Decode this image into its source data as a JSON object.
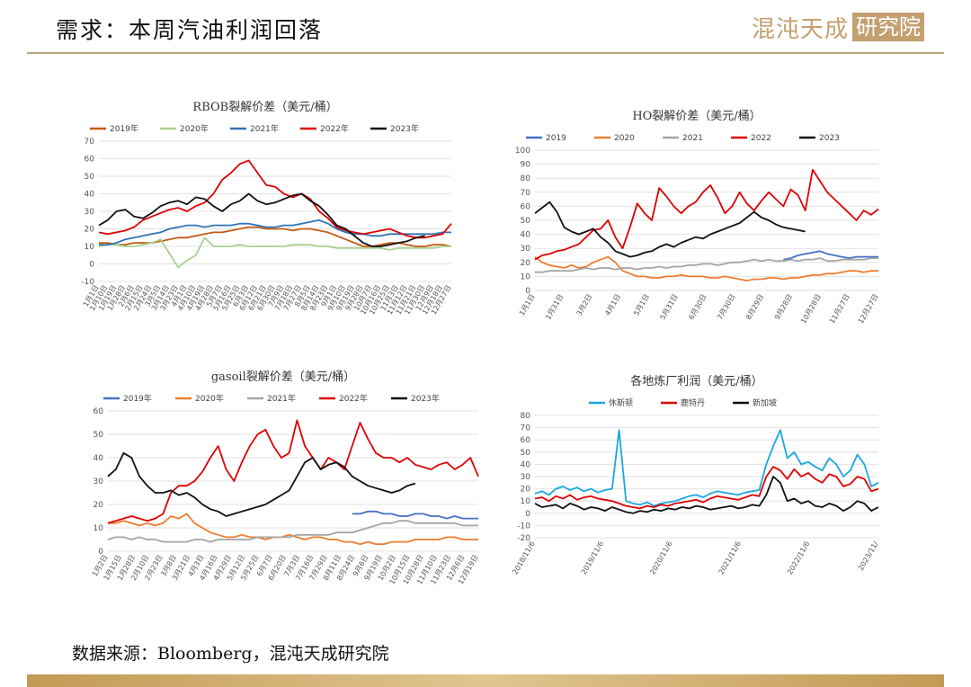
{
  "header": {
    "title": "需求：本周汽油利润回落",
    "logo_text": "混沌天成",
    "logo_box": "研究院"
  },
  "footer": {
    "source": "数据来源：Bloomberg，混沌天成研究院"
  },
  "chart_data": [
    {
      "type": "line",
      "title": "RBOB裂解价差（美元/桶）",
      "ylim": [
        -10,
        70
      ],
      "yticks": [
        -10,
        0,
        10,
        20,
        30,
        40,
        50,
        60,
        70
      ],
      "xticks": [
        "1月1日",
        "1月10日",
        "1月19日",
        "1月28日",
        "2月6日",
        "2月15日",
        "2月24日",
        "3月5日",
        "3月14日",
        "3月23日",
        "4月1日",
        "4月10日",
        "4月19日",
        "4月28日",
        "5月7日",
        "5月16日",
        "5月25日",
        "6月3日",
        "6月12日",
        "6月21日",
        "6月30日",
        "7月9日",
        "7月18日",
        "7月27日",
        "8月5日",
        "8月14日",
        "8月23日",
        "9月1日",
        "9月10日",
        "9月19日",
        "9月28日",
        "10月7日",
        "10月16日",
        "10月25日",
        "11月3日",
        "11月12日",
        "11月21日",
        "11月30日",
        "12月9日",
        "12月18日",
        "12月27日"
      ],
      "legend_position": "top",
      "series": [
        {
          "name": "2019年",
          "color": "#c55a11",
          "values": [
            12,
            12,
            11,
            11,
            12,
            12,
            12,
            13,
            14,
            15,
            15,
            16,
            17,
            18,
            18,
            19,
            20,
            21,
            21,
            20,
            20,
            20,
            19,
            20,
            20,
            19,
            18,
            16,
            14,
            12,
            10,
            10,
            11,
            12,
            12,
            11,
            10,
            10,
            11,
            11,
            10
          ]
        },
        {
          "name": "2020年",
          "color": "#a9d18e",
          "values": [
            10,
            11,
            11,
            10,
            10,
            11,
            12,
            14,
            6,
            -2,
            2,
            5,
            15,
            10,
            10,
            10,
            11,
            10,
            10,
            10,
            10,
            10,
            11,
            11,
            11,
            10,
            10,
            9,
            9,
            9,
            9,
            9,
            9,
            8,
            9,
            9,
            9,
            9,
            9,
            10,
            10
          ]
        },
        {
          "name": "2021年",
          "color": "#2e75b6",
          "values": [
            11,
            11,
            12,
            14,
            15,
            16,
            17,
            18,
            20,
            21,
            22,
            22,
            21,
            22,
            22,
            22,
            23,
            23,
            22,
            21,
            21,
            22,
            22,
            23,
            24,
            25,
            23,
            20,
            18,
            17,
            17,
            16,
            16,
            17,
            17,
            17,
            17,
            17,
            17,
            18,
            18
          ]
        },
        {
          "name": "2022年",
          "color": "#e00000",
          "values": [
            18,
            17,
            18,
            19,
            21,
            25,
            27,
            29,
            31,
            32,
            30,
            33,
            35,
            40,
            48,
            52,
            57,
            59,
            52,
            45,
            44,
            40,
            38,
            40,
            37,
            30,
            26,
            21,
            19,
            18,
            17,
            18,
            19,
            20,
            18,
            16,
            15,
            15,
            16,
            17,
            23
          ]
        },
        {
          "name": "2023年",
          "color": "#111111",
          "values": [
            22,
            25,
            30,
            31,
            27,
            26,
            29,
            33,
            35,
            36,
            34,
            38,
            37,
            33,
            30,
            34,
            36,
            40,
            36,
            34,
            35,
            37,
            39,
            40,
            36,
            33,
            28,
            22,
            20,
            16,
            12,
            10,
            10,
            11,
            12,
            13,
            15,
            16,
            null,
            null,
            null
          ]
        }
      ]
    },
    {
      "type": "line",
      "title": "HO裂解价差（美元/桶）",
      "ylim": [
        0,
        100
      ],
      "yticks": [
        0,
        10,
        20,
        30,
        40,
        50,
        60,
        70,
        80,
        90,
        100
      ],
      "xticks": [
        "1月1日",
        "1月31日",
        "3月2日",
        "4月1日",
        "5月1日",
        "5月31日",
        "6月30日",
        "7月30日",
        "8月29日",
        "9月28日",
        "10月28日",
        "11月27日",
        "12月27日"
      ],
      "legend_position": "top",
      "series": [
        {
          "name": "2019",
          "color": "#4472c4",
          "values": [
            null,
            null,
            null,
            null,
            null,
            null,
            null,
            null,
            null,
            null,
            null,
            null,
            null,
            null,
            null,
            null,
            null,
            null,
            null,
            null,
            null,
            null,
            null,
            null,
            null,
            null,
            null,
            null,
            null,
            null,
            null,
            null,
            null,
            null,
            22,
            23,
            25,
            26,
            27,
            28,
            26,
            25,
            24,
            23,
            24,
            24,
            24,
            24
          ]
        },
        {
          "name": "2020",
          "color": "#ed7d31",
          "values": [
            24,
            20,
            18,
            17,
            16,
            18,
            16,
            17,
            20,
            22,
            24,
            20,
            14,
            12,
            10,
            10,
            9,
            9,
            10,
            10,
            11,
            10,
            10,
            10,
            9,
            9,
            10,
            9,
            8,
            7,
            8,
            8,
            9,
            9,
            8,
            9,
            9,
            10,
            11,
            11,
            12,
            12,
            13,
            14,
            14,
            13,
            14,
            14
          ]
        },
        {
          "name": "2021",
          "color": "#a5a5a5",
          "values": [
            13,
            13,
            14,
            14,
            14,
            14,
            15,
            16,
            15,
            16,
            16,
            15,
            16,
            16,
            15,
            16,
            16,
            17,
            16,
            17,
            17,
            18,
            18,
            19,
            19,
            18,
            19,
            20,
            20,
            21,
            22,
            21,
            22,
            21,
            21,
            22,
            21,
            22,
            22,
            23,
            21,
            21,
            22,
            22,
            22,
            22,
            23,
            23
          ]
        },
        {
          "name": "2022",
          "color": "#e00000",
          "values": [
            22,
            25,
            26,
            28,
            29,
            31,
            33,
            38,
            43,
            44,
            50,
            38,
            30,
            45,
            62,
            55,
            50,
            73,
            67,
            60,
            55,
            60,
            63,
            70,
            75,
            66,
            55,
            60,
            70,
            62,
            57,
            64,
            70,
            65,
            60,
            72,
            68,
            57,
            86,
            78,
            70,
            65,
            60,
            55,
            50,
            57,
            54,
            58
          ]
        },
        {
          "name": "2023",
          "color": "#111111",
          "values": [
            55,
            59,
            63,
            56,
            45,
            42,
            40,
            42,
            44,
            38,
            34,
            28,
            26,
            24,
            25,
            27,
            28,
            31,
            33,
            31,
            34,
            36,
            38,
            37,
            40,
            42,
            44,
            46,
            48,
            52,
            56,
            52,
            50,
            47,
            45,
            44,
            43,
            42,
            null,
            null,
            null,
            null,
            null,
            null,
            null,
            null,
            null,
            null
          ]
        }
      ]
    },
    {
      "type": "line",
      "title": "gasoil裂解价差（美元/桶）",
      "ylim": [
        0,
        60
      ],
      "yticks": [
        0,
        10,
        20,
        30,
        40,
        50,
        60
      ],
      "xticks": [
        "1月2日",
        "1月15日",
        "1月28日",
        "2月10日",
        "2月23日",
        "3月8日",
        "3月21日",
        "4月3日",
        "4月16日",
        "4月29日",
        "5月12日",
        "5月25日",
        "6月7日",
        "6月20日",
        "7月3日",
        "7月16日",
        "7月29日",
        "8月11日",
        "8月24日",
        "9月6日",
        "9月19日",
        "10月2日",
        "10月15日",
        "10月28日",
        "11月10日",
        "11月23日",
        "12月6日",
        "12月19日"
      ],
      "legend_position": "top",
      "series": [
        {
          "name": "2019年",
          "color": "#4472c4",
          "values": [
            null,
            null,
            null,
            null,
            null,
            null,
            null,
            null,
            null,
            null,
            null,
            null,
            null,
            null,
            null,
            null,
            null,
            null,
            null,
            null,
            null,
            null,
            null,
            null,
            null,
            null,
            null,
            null,
            null,
            null,
            null,
            16,
            16,
            17,
            17,
            16,
            16,
            15,
            15,
            16,
            16,
            15,
            15,
            14,
            15,
            14,
            14,
            14
          ]
        },
        {
          "name": "2020年",
          "color": "#ed7d31",
          "values": [
            12,
            12,
            13,
            12,
            11,
            12,
            11,
            12,
            15,
            14,
            16,
            12,
            10,
            8,
            7,
            6,
            6,
            7,
            6,
            6,
            5,
            6,
            6,
            7,
            6,
            5,
            6,
            6,
            5,
            5,
            4,
            4,
            3,
            4,
            3,
            3,
            4,
            4,
            4,
            5,
            5,
            5,
            5,
            6,
            6,
            5,
            5,
            5
          ]
        },
        {
          "name": "2021年",
          "color": "#a5a5a5",
          "values": [
            5,
            6,
            6,
            5,
            6,
            5,
            5,
            4,
            4,
            4,
            4,
            5,
            5,
            4,
            5,
            5,
            5,
            5,
            5,
            6,
            6,
            6,
            6,
            6,
            7,
            7,
            7,
            7,
            7,
            8,
            8,
            8,
            9,
            10,
            11,
            12,
            12,
            13,
            13,
            12,
            12,
            12,
            12,
            12,
            12,
            11,
            11,
            11
          ]
        },
        {
          "name": "2022年",
          "color": "#e00000",
          "values": [
            12,
            13,
            14,
            15,
            14,
            13,
            14,
            16,
            25,
            28,
            28,
            30,
            34,
            40,
            45,
            35,
            30,
            38,
            45,
            50,
            52,
            45,
            40,
            42,
            56,
            45,
            40,
            35,
            40,
            38,
            35,
            45,
            55,
            48,
            42,
            40,
            40,
            38,
            40,
            37,
            36,
            35,
            37,
            38,
            35,
            37,
            40,
            32
          ]
        },
        {
          "name": "2023年",
          "color": "#111111",
          "values": [
            32,
            35,
            42,
            40,
            32,
            28,
            25,
            25,
            26,
            24,
            25,
            23,
            20,
            18,
            17,
            15,
            16,
            17,
            18,
            19,
            20,
            22,
            24,
            26,
            32,
            38,
            40,
            35,
            37,
            38,
            36,
            32,
            30,
            28,
            27,
            26,
            25,
            26,
            28,
            29,
            null,
            null,
            null,
            null,
            null,
            null,
            null,
            null
          ]
        }
      ]
    },
    {
      "type": "line",
      "title": "各地炼厂利润（美元/桶）",
      "ylim": [
        -20,
        80
      ],
      "yticks": [
        -20,
        -10,
        0,
        10,
        20,
        30,
        40,
        50,
        60,
        70,
        80
      ],
      "xticks": [
        "2018/11/6",
        "2019/11/6",
        "2020/11/6",
        "2021/11/6",
        "2022/11/6",
        "2023/11/"
      ],
      "legend_position": "top",
      "series": [
        {
          "name": "休斯顿",
          "color": "#1aa7e0",
          "values": [
            16,
            18,
            15,
            20,
            22,
            19,
            21,
            18,
            20,
            17,
            19,
            20,
            68,
            10,
            8,
            7,
            9,
            6,
            8,
            9,
            10,
            12,
            14,
            15,
            13,
            16,
            18,
            17,
            16,
            15,
            17,
            18,
            19,
            40,
            55,
            68,
            45,
            50,
            40,
            42,
            38,
            35,
            45,
            40,
            30,
            35,
            48,
            40,
            22,
            25
          ]
        },
        {
          "name": "鹿特丹",
          "color": "#e00000",
          "values": [
            12,
            13,
            10,
            14,
            12,
            15,
            11,
            13,
            14,
            12,
            11,
            10,
            8,
            6,
            5,
            4,
            6,
            5,
            7,
            6,
            8,
            9,
            10,
            11,
            9,
            12,
            14,
            13,
            12,
            11,
            13,
            15,
            14,
            30,
            38,
            35,
            28,
            36,
            30,
            33,
            28,
            25,
            32,
            30,
            22,
            24,
            30,
            28,
            18,
            20
          ]
        },
        {
          "name": "新加坡",
          "color": "#111111",
          "values": [
            8,
            5,
            6,
            7,
            4,
            8,
            6,
            3,
            5,
            4,
            2,
            5,
            3,
            1,
            0,
            2,
            1,
            3,
            2,
            4,
            3,
            5,
            4,
            6,
            5,
            3,
            4,
            5,
            6,
            4,
            5,
            7,
            6,
            15,
            30,
            25,
            10,
            12,
            8,
            10,
            6,
            5,
            8,
            6,
            2,
            5,
            10,
            8,
            2,
            5
          ]
        }
      ]
    }
  ]
}
